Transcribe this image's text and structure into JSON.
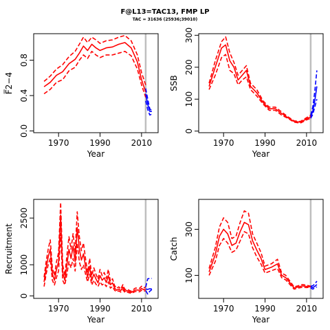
{
  "figure": {
    "title": "F@L13=TAC13, FMP LP",
    "subtitle": "TAC = 31636 (25936;39010)",
    "colors": {
      "historic": "#ff0000",
      "projection": "#0000ff",
      "ref_line": "#bebebe"
    }
  },
  "chart_data": [
    {
      "type": "line",
      "panel": "F",
      "ylabel": "F̅2−4",
      "xlabel": "Year",
      "xlim": [
        1958,
        2018
      ],
      "ylim": [
        -0.02,
        1.1
      ],
      "xticks": [
        "1970",
        "1990",
        "2010"
      ],
      "yticks": [
        "0.0",
        "0.4",
        "0.8"
      ],
      "ref_year": 2012,
      "series": [
        {
          "role": "lower",
          "color": "#ff0000",
          "dash": true,
          "x": [
            1963,
            1966,
            1969,
            1972,
            1975,
            1978,
            1980,
            1982,
            1984,
            1986,
            1988,
            1990,
            1993,
            1996,
            1999,
            2002,
            2005,
            2008,
            2010,
            2012
          ],
          "values": [
            0.42,
            0.47,
            0.55,
            0.58,
            0.68,
            0.72,
            0.8,
            0.86,
            0.82,
            0.9,
            0.86,
            0.83,
            0.86,
            0.86,
            0.88,
            0.9,
            0.85,
            0.7,
            0.52,
            0.38
          ]
        },
        {
          "role": "median",
          "color": "#ff0000",
          "dash": false,
          "x": [
            1963,
            1966,
            1969,
            1972,
            1975,
            1978,
            1980,
            1982,
            1984,
            1986,
            1988,
            1990,
            1993,
            1996,
            1999,
            2002,
            2005,
            2008,
            2010,
            2012
          ],
          "values": [
            0.5,
            0.55,
            0.63,
            0.67,
            0.76,
            0.81,
            0.88,
            0.96,
            0.91,
            0.98,
            0.94,
            0.91,
            0.94,
            0.95,
            0.98,
            1.0,
            0.94,
            0.78,
            0.58,
            0.44
          ]
        },
        {
          "role": "upper",
          "color": "#ff0000",
          "dash": true,
          "x": [
            1963,
            1966,
            1969,
            1972,
            1975,
            1978,
            1980,
            1982,
            1984,
            1986,
            1988,
            1990,
            1993,
            1996,
            1999,
            2002,
            2005,
            2008,
            2010,
            2012
          ],
          "values": [
            0.56,
            0.62,
            0.7,
            0.75,
            0.84,
            0.9,
            0.98,
            1.06,
            1.0,
            1.06,
            1.03,
            0.99,
            1.02,
            1.03,
            1.06,
            1.08,
            1.02,
            0.86,
            0.66,
            0.52
          ]
        },
        {
          "role": "proj-lower",
          "color": "#0000ff",
          "dash": true,
          "x": [
            2012,
            2013,
            2014,
            2015
          ],
          "values": [
            0.34,
            0.24,
            0.18,
            0.19
          ]
        },
        {
          "role": "proj-median",
          "color": "#0000ff",
          "dash": false,
          "x": [
            2012,
            2013,
            2014,
            2015
          ],
          "values": [
            0.42,
            0.3,
            0.22,
            0.22
          ]
        },
        {
          "role": "proj-upper",
          "color": "#0000ff",
          "dash": true,
          "x": [
            2012,
            2013,
            2014,
            2015
          ],
          "values": [
            0.48,
            0.36,
            0.25,
            0.23
          ]
        }
      ]
    },
    {
      "type": "line",
      "panel": "SSB",
      "ylabel": "SSB",
      "xlabel": "Year",
      "xlim": [
        1958,
        2018
      ],
      "ylim": [
        -5,
        305
      ],
      "xticks": [
        "1970",
        "1990",
        "2010"
      ],
      "yticks": [
        "0",
        "100",
        "200",
        "300"
      ],
      "ref_year": 2012,
      "series": [
        {
          "role": "lower",
          "color": "#ff0000",
          "dash": true,
          "x": [
            1963,
            1966,
            1969,
            1971,
            1973,
            1975,
            1977,
            1979,
            1981,
            1983,
            1986,
            1989,
            1992,
            1995,
            1998,
            2001,
            2004,
            2007,
            2010,
            2012
          ],
          "values": [
            130,
            175,
            230,
            240,
            190,
            180,
            145,
            160,
            170,
            130,
            110,
            85,
            65,
            65,
            50,
            40,
            28,
            25,
            35,
            40
          ]
        },
        {
          "role": "median",
          "color": "#ff0000",
          "dash": false,
          "x": [
            1963,
            1966,
            1969,
            1971,
            1973,
            1975,
            1977,
            1979,
            1981,
            1983,
            1986,
            1989,
            1992,
            1995,
            1998,
            2001,
            2004,
            2007,
            2010,
            2012
          ],
          "values": [
            140,
            200,
            260,
            270,
            220,
            200,
            160,
            175,
            190,
            140,
            120,
            90,
            70,
            70,
            55,
            42,
            30,
            28,
            38,
            45
          ]
        },
        {
          "role": "upper",
          "color": "#ff0000",
          "dash": true,
          "x": [
            1963,
            1966,
            1969,
            1971,
            1973,
            1975,
            1977,
            1979,
            1981,
            1983,
            1986,
            1989,
            1992,
            1995,
            1998,
            2001,
            2004,
            2007,
            2010,
            2012
          ],
          "values": [
            150,
            220,
            280,
            295,
            245,
            215,
            175,
            190,
            205,
            150,
            130,
            95,
            75,
            75,
            60,
            45,
            32,
            30,
            42,
            50
          ]
        },
        {
          "role": "proj-lower",
          "color": "#0000ff",
          "dash": true,
          "x": [
            2012,
            2013,
            2014,
            2015
          ],
          "values": [
            40,
            52,
            75,
            100
          ]
        },
        {
          "role": "proj-median",
          "color": "#0000ff",
          "dash": false,
          "x": [
            2012,
            2013,
            2014,
            2015
          ],
          "values": [
            45,
            62,
            95,
            140
          ]
        },
        {
          "role": "proj-upper",
          "color": "#0000ff",
          "dash": true,
          "x": [
            2012,
            2013,
            2014,
            2015
          ],
          "values": [
            50,
            75,
            125,
            190
          ]
        }
      ]
    },
    {
      "type": "line",
      "panel": "Recruitment",
      "ylabel": "Recruitment",
      "xlabel": "Year",
      "xlim": [
        1958,
        2018
      ],
      "ylim": [
        -80,
        3100
      ],
      "xticks": [
        "1970",
        "1990",
        "2010"
      ],
      "yticks": [
        "0",
        "1000",
        "2500"
      ],
      "ref_year": 2012,
      "series": [
        {
          "role": "lower",
          "color": "#ff0000",
          "dash": true,
          "x": [
            1963,
            1964,
            1965,
            1966,
            1967,
            1968,
            1969,
            1970,
            1971,
            1972,
            1973,
            1974,
            1975,
            1976,
            1977,
            1978,
            1979,
            1980,
            1981,
            1982,
            1983,
            1984,
            1985,
            1986,
            1987,
            1988,
            1989,
            1990,
            1991,
            1992,
            1993,
            1994,
            1995,
            1996,
            1997,
            1998,
            1999,
            2000,
            2001,
            2002,
            2003,
            2004,
            2005,
            2006,
            2007,
            2008,
            2009,
            2010,
            2011,
            2012
          ],
          "values": [
            300,
            700,
            1000,
            1200,
            500,
            350,
            600,
            800,
            2000,
            500,
            350,
            700,
            1100,
            900,
            1200,
            800,
            1700,
            1100,
            850,
            1000,
            700,
            450,
            700,
            350,
            500,
            380,
            300,
            450,
            350,
            400,
            300,
            450,
            250,
            300,
            180,
            130,
            160,
            120,
            200,
            110,
            120,
            100,
            80,
            110,
            140,
            140,
            130,
            180,
            150,
            170
          ]
        },
        {
          "role": "median",
          "color": "#ff0000",
          "dash": false,
          "x": [
            1963,
            1964,
            1965,
            1966,
            1967,
            1968,
            1969,
            1970,
            1971,
            1972,
            1973,
            1974,
            1975,
            1976,
            1977,
            1978,
            1979,
            1980,
            1981,
            1982,
            1983,
            1984,
            1985,
            1986,
            1987,
            1988,
            1989,
            1990,
            1991,
            1992,
            1993,
            1994,
            1995,
            1996,
            1997,
            1998,
            1999,
            2000,
            2001,
            2002,
            2003,
            2004,
            2005,
            2006,
            2007,
            2008,
            2009,
            2010,
            2011,
            2012
          ],
          "values": [
            450,
            900,
            1250,
            1500,
            700,
            500,
            850,
            1100,
            2600,
            750,
            500,
            1000,
            1500,
            1200,
            1600,
            1100,
            2200,
            1500,
            1150,
            1350,
            950,
            600,
            950,
            500,
            700,
            550,
            420,
            650,
            500,
            580,
            430,
            650,
            360,
            420,
            250,
            180,
            220,
            170,
            280,
            150,
            170,
            140,
            110,
            150,
            190,
            190,
            180,
            240,
            200,
            220
          ]
        },
        {
          "role": "upper",
          "color": "#ff0000",
          "dash": true,
          "x": [
            1963,
            1964,
            1965,
            1966,
            1967,
            1968,
            1969,
            1970,
            1971,
            1972,
            1973,
            1974,
            1975,
            1976,
            1977,
            1978,
            1979,
            1980,
            1981,
            1982,
            1983,
            1984,
            1985,
            1986,
            1987,
            1988,
            1989,
            1990,
            1991,
            1992,
            1993,
            1994,
            1995,
            1996,
            1997,
            1998,
            1999,
            2000,
            2001,
            2002,
            2003,
            2004,
            2005,
            2006,
            2007,
            2008,
            2009,
            2010,
            2011,
            2012
          ],
          "values": [
            600,
            1100,
            1500,
            1800,
            900,
            650,
            1100,
            1400,
            3000,
            1000,
            650,
            1300,
            1900,
            1500,
            2000,
            1400,
            2700,
            1900,
            1450,
            1700,
            1200,
            750,
            1200,
            650,
            900,
            700,
            540,
            850,
            650,
            750,
            560,
            850,
            470,
            550,
            330,
            240,
            290,
            220,
            360,
            200,
            220,
            180,
            150,
            200,
            250,
            250,
            240,
            310,
            260,
            280
          ]
        },
        {
          "role": "proj-lower",
          "color": "#0000ff",
          "dash": true,
          "x": [
            2012,
            2013,
            2014,
            2015
          ],
          "values": [
            170,
            60,
            150,
            200
          ]
        },
        {
          "role": "proj-median",
          "color": "#0000ff",
          "dash": false,
          "x": [
            2012,
            2013,
            2014,
            2015
          ],
          "values": [
            220,
            210,
            230,
            220
          ]
        },
        {
          "role": "proj-upper",
          "color": "#0000ff",
          "dash": true,
          "x": [
            2012,
            2013,
            2014,
            2015
          ],
          "values": [
            280,
            550,
            560,
            560
          ]
        }
      ]
    },
    {
      "type": "line",
      "panel": "Catch",
      "ylabel": "Catch",
      "xlabel": "Year",
      "xlim": [
        1958,
        2018
      ],
      "ylim": [
        0,
        430
      ],
      "xticks": [
        "1970",
        "1990",
        "2010"
      ],
      "yticks": [
        "100",
        "300"
      ],
      "ref_year": 2012,
      "series": [
        {
          "role": "lower",
          "color": "#ff0000",
          "dash": true,
          "x": [
            1963,
            1966,
            1968,
            1970,
            1972,
            1974,
            1976,
            1978,
            1980,
            1982,
            1984,
            1986,
            1988,
            1990,
            1993,
            1996,
            1998,
            2000,
            2002,
            2004,
            2006,
            2008,
            2010,
            2012
          ],
          "values": [
            100,
            160,
            230,
            260,
            240,
            200,
            210,
            250,
            290,
            280,
            220,
            180,
            150,
            110,
            120,
            130,
            90,
            80,
            60,
            40,
            45,
            48,
            47,
            48
          ]
        },
        {
          "role": "median",
          "color": "#ff0000",
          "dash": false,
          "x": [
            1963,
            1966,
            1968,
            1970,
            1972,
            1974,
            1976,
            1978,
            1980,
            1982,
            1984,
            1986,
            1988,
            1990,
            1993,
            1996,
            1998,
            2000,
            2002,
            2004,
            2006,
            2008,
            2010,
            2012
          ],
          "values": [
            115,
            190,
            270,
            300,
            280,
            230,
            240,
            290,
            330,
            320,
            250,
            210,
            175,
            125,
            135,
            150,
            100,
            90,
            68,
            45,
            50,
            54,
            52,
            50
          ]
        },
        {
          "role": "upper",
          "color": "#ff0000",
          "dash": true,
          "x": [
            1963,
            1966,
            1968,
            1970,
            1972,
            1974,
            1976,
            1978,
            1980,
            1982,
            1984,
            1986,
            1988,
            1990,
            1993,
            1996,
            1998,
            2000,
            2002,
            2004,
            2006,
            2008,
            2010,
            2012
          ],
          "values": [
            130,
            220,
            310,
            350,
            330,
            260,
            270,
            330,
            380,
            370,
            280,
            240,
            200,
            140,
            150,
            170,
            110,
            100,
            75,
            50,
            55,
            60,
            57,
            53
          ]
        },
        {
          "role": "proj-lower",
          "color": "#0000ff",
          "dash": true,
          "x": [
            2012,
            2013,
            2014,
            2015
          ],
          "values": [
            45,
            40,
            45,
            50
          ]
        },
        {
          "role": "proj-median",
          "color": "#0000ff",
          "dash": false,
          "x": [
            2012,
            2013,
            2014,
            2015
          ],
          "values": [
            50,
            47,
            52,
            60
          ]
        },
        {
          "role": "proj-upper",
          "color": "#0000ff",
          "dash": true,
          "x": [
            2012,
            2013,
            2014,
            2015
          ],
          "values": [
            53,
            55,
            62,
            75
          ]
        }
      ]
    }
  ]
}
